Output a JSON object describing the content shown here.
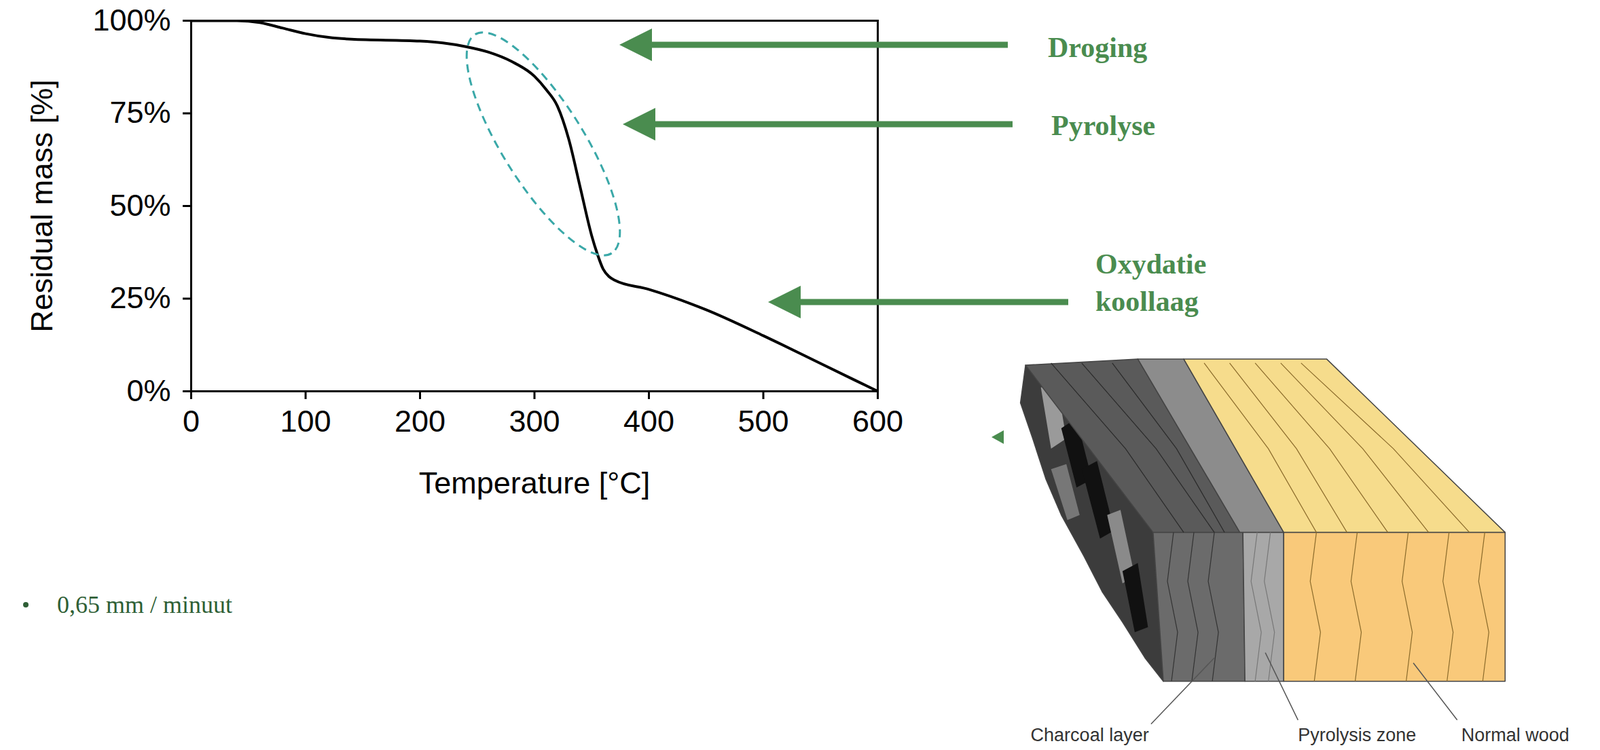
{
  "chart_data": {
    "type": "line",
    "x_label": "Temperature [°C]",
    "y_label": "Residual mass [%]",
    "x": [
      0,
      40,
      60,
      80,
      100,
      120,
      140,
      200,
      220,
      240,
      260,
      280,
      300,
      310,
      320,
      330,
      340,
      350,
      355,
      360,
      365,
      370,
      400,
      450,
      500,
      550,
      580,
      600
    ],
    "values": [
      100,
      100,
      99.5,
      98,
      96.5,
      95.5,
      95,
      94.5,
      94,
      93,
      91.5,
      89,
      85,
      81.5,
      77,
      68,
      55,
      42,
      37,
      33,
      31,
      30,
      27.5,
      22,
      15,
      7.5,
      3,
      0
    ],
    "color": "#000000",
    "xlim": [
      0,
      600
    ],
    "xticks": [
      0,
      100,
      200,
      300,
      400,
      500,
      600
    ],
    "ylim": [
      0,
      100
    ],
    "yticks": [
      {
        "value": 0,
        "label": "0%"
      },
      {
        "value": 25,
        "label": "25%"
      },
      {
        "value": 50,
        "label": "50%"
      },
      {
        "value": 75,
        "label": "75%"
      },
      {
        "value": 100,
        "label": "100%"
      }
    ],
    "grid": false
  },
  "annotations": [
    "Droging",
    "Pyrolyse",
    "Oxydatie koollaag"
  ],
  "bullets": [
    "0,65 mm / minuut"
  ],
  "diagram": {
    "labels": [
      "Charcoal layer",
      "Pyrolysis zone",
      "Normal wood"
    ]
  }
}
